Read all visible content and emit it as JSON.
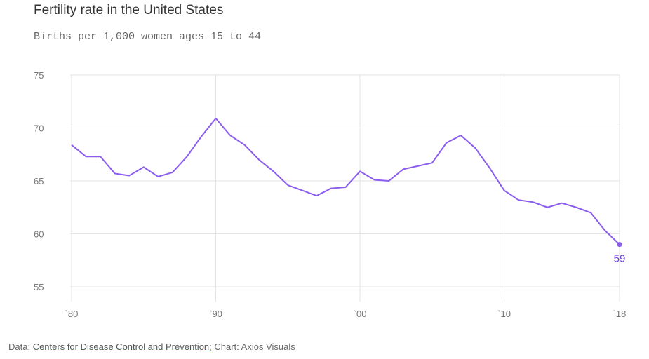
{
  "chart_data": {
    "type": "line",
    "title": "Fertility rate in the United States",
    "subtitle": "Births per 1,000 women ages 15 to 44",
    "xlabel": "",
    "ylabel": "",
    "xlim": [
      1980,
      2018
    ],
    "ylim": [
      55,
      75
    ],
    "yticks": [
      55,
      60,
      65,
      70,
      75
    ],
    "xticks": [
      {
        "value": 1980,
        "label": "`80"
      },
      {
        "value": 1990,
        "label": "`90"
      },
      {
        "value": 2000,
        "label": "`00"
      },
      {
        "value": 2010,
        "label": "`10"
      },
      {
        "value": 2018,
        "label": "`18"
      }
    ],
    "grid": true,
    "series": [
      {
        "name": "Fertility rate",
        "color": "#8b5cf0",
        "x": [
          1980,
          1981,
          1982,
          1983,
          1984,
          1985,
          1986,
          1987,
          1988,
          1989,
          1990,
          1991,
          1992,
          1993,
          1994,
          1995,
          1996,
          1997,
          1998,
          1999,
          2000,
          2001,
          2002,
          2003,
          2004,
          2005,
          2006,
          2007,
          2008,
          2009,
          2010,
          2011,
          2012,
          2013,
          2014,
          2015,
          2016,
          2017,
          2018
        ],
        "values": [
          68.4,
          67.3,
          67.3,
          65.7,
          65.5,
          66.3,
          65.4,
          65.8,
          67.3,
          69.2,
          70.9,
          69.3,
          68.4,
          67.0,
          65.9,
          64.6,
          64.1,
          63.6,
          64.3,
          64.4,
          65.9,
          65.1,
          65.0,
          66.1,
          66.4,
          66.7,
          68.6,
          69.3,
          68.1,
          66.2,
          64.1,
          63.2,
          63.0,
          62.5,
          62.9,
          62.5,
          62.0,
          60.3,
          59.0
        ]
      }
    ],
    "annotations": [
      {
        "x": 2018,
        "y": 59,
        "label": "59"
      }
    ]
  },
  "footer": {
    "data_prefix": "Data: ",
    "source_link": "Centers for Disease Control and Prevention",
    "suffix": "; Chart: Axios Visuals"
  }
}
